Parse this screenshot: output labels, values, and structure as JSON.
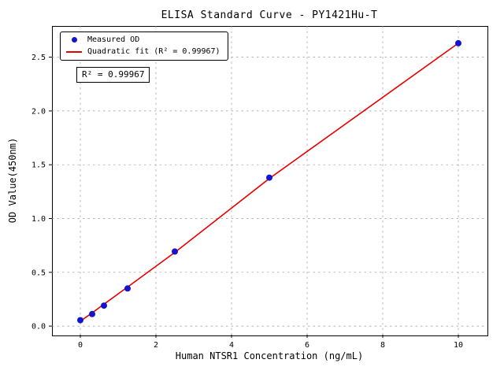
{
  "chart_data": {
    "type": "scatter",
    "title": "ELISA Standard Curve - PY1421Hu-T",
    "xlabel": "Human NTSR1 Concentration (ng/mL)",
    "ylabel": "OD Value(450nm)",
    "xlim": [
      -0.75,
      10.75
    ],
    "ylim": [
      -0.08,
      2.79
    ],
    "xticks": [
      0,
      2,
      4,
      6,
      8,
      10
    ],
    "xtick_labels": [
      "0",
      "2",
      "4",
      "6",
      "8",
      "10"
    ],
    "yticks": [
      0.0,
      0.5,
      1.0,
      1.5,
      2.0,
      2.5
    ],
    "ytick_labels": [
      "0.0",
      "0.5",
      "1.0",
      "1.5",
      "2.0",
      "2.5"
    ],
    "grid": true,
    "grid_style": "dashed",
    "grid_color": "#9a9a9a",
    "legend_position": "upper left",
    "annotation": "R² = 0.99967",
    "series": [
      {
        "name": "Measured OD",
        "kind": "scatter",
        "color": "#1414cc",
        "x": [
          0,
          0.312,
          0.625,
          1.25,
          2.5,
          5,
          10
        ],
        "y": [
          0.055,
          0.112,
          0.19,
          0.35,
          0.693,
          1.38,
          2.63
        ]
      },
      {
        "name": "Quadratic fit (R² = 0.99967)",
        "kind": "line",
        "color": "#e60000",
        "x": [
          0,
          0.312,
          0.625,
          1.25,
          2.5,
          5,
          10
        ],
        "y": [
          0.045,
          0.123,
          0.203,
          0.363,
          0.685,
          1.372,
          2.63
        ]
      }
    ]
  }
}
